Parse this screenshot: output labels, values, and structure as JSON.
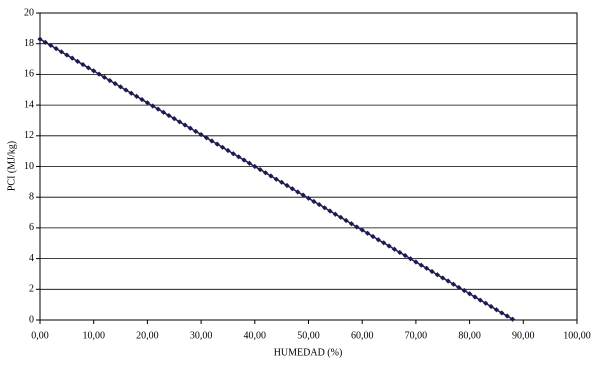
{
  "chart_data": {
    "type": "line",
    "x_label": "HUMEDAD (%)",
    "y_label": "PCI (MJ/kg)",
    "color": "#1b1b50",
    "x": [
      0,
      1,
      2,
      3,
      4,
      5,
      6,
      7,
      8,
      9,
      10,
      11,
      12,
      13,
      14,
      15,
      16,
      17,
      18,
      19,
      20,
      21,
      22,
      23,
      24,
      25,
      26,
      27,
      28,
      29,
      30,
      31,
      32,
      33,
      34,
      35,
      36,
      37,
      38,
      39,
      40,
      41,
      42,
      43,
      44,
      45,
      46,
      47,
      48,
      49,
      50,
      51,
      52,
      53,
      54,
      55,
      56,
      57,
      58,
      59,
      60,
      61,
      62,
      63,
      64,
      65,
      66,
      67,
      68,
      69,
      70,
      71,
      72,
      73,
      74,
      75,
      76,
      77,
      78,
      79,
      80,
      81,
      82,
      83,
      84,
      85,
      86,
      87,
      88
    ],
    "values": [
      18.3,
      18.09,
      17.89,
      17.68,
      17.47,
      17.26,
      17.06,
      16.85,
      16.64,
      16.43,
      16.23,
      16.02,
      15.81,
      15.6,
      15.4,
      15.19,
      14.98,
      14.77,
      14.57,
      14.36,
      14.15,
      13.94,
      13.74,
      13.53,
      13.32,
      13.12,
      12.91,
      12.7,
      12.49,
      12.29,
      12.08,
      11.87,
      11.66,
      11.46,
      11.25,
      11.04,
      10.83,
      10.63,
      10.42,
      10.21,
      10.0,
      9.8,
      9.59,
      9.38,
      9.17,
      8.97,
      8.76,
      8.55,
      8.34,
      8.14,
      7.93,
      7.72,
      7.52,
      7.31,
      7.1,
      6.89,
      6.69,
      6.48,
      6.27,
      6.06,
      5.86,
      5.65,
      5.44,
      5.23,
      5.03,
      4.82,
      4.61,
      4.4,
      4.2,
      3.99,
      3.78,
      3.57,
      3.37,
      3.16,
      2.95,
      2.74,
      2.54,
      2.33,
      2.12,
      1.92,
      1.71,
      1.5,
      1.29,
      1.09,
      0.88,
      0.67,
      0.46,
      0.26,
      0.05
    ],
    "xlim": [
      0,
      100
    ],
    "xticks": [
      {
        "value": 0,
        "label": "0,00"
      },
      {
        "value": 10,
        "label": "10,00"
      },
      {
        "value": 20,
        "label": "20,00"
      },
      {
        "value": 30,
        "label": "30,00"
      },
      {
        "value": 40,
        "label": "40,00"
      },
      {
        "value": 50,
        "label": "50,00"
      },
      {
        "value": 60,
        "label": "60,00"
      },
      {
        "value": 70,
        "label": "70,00"
      },
      {
        "value": 80,
        "label": "80,00"
      },
      {
        "value": 90,
        "label": "90,00"
      },
      {
        "value": 100,
        "label": "100,00"
      }
    ],
    "ylim": [
      0,
      20
    ],
    "yticks": [
      0,
      2,
      4,
      6,
      8,
      10,
      12,
      14,
      16,
      18,
      20
    ],
    "grid": true
  }
}
